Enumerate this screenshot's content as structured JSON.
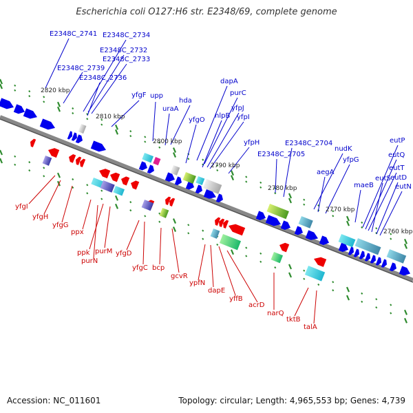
{
  "title": "Escherichia coli O127:H6 str. E2348/69, complete genome",
  "footer": {
    "accession": "Accession: NC_011601",
    "topology": "Topology: circular; Length: 4,965,553 bp; Genes: 4,739"
  },
  "colors": {
    "forward_gene": "#0000ee",
    "reverse_gene": "#ee0000",
    "backbone": "#888888",
    "tick": "#2e8b2e",
    "label_blue": "#0000cc",
    "label_red": "#cc0000"
  },
  "scale_labels": [
    "2820 kbp",
    "2810 kbp",
    "2800 kbp",
    "2790 kbp",
    "2780 kbp",
    "2770 kbp",
    "2760 kbp"
  ],
  "top_labels": [
    "E2348C_2741",
    "E2348C_2734",
    "E2348C_2732",
    "E2348C_2733",
    "E2348C_2739",
    "E2348C_2736",
    "yfgF",
    "upp",
    "uraA",
    "hda",
    "dapA",
    "purC",
    "nlpB",
    "yfgO",
    "yfpJ",
    "yfpI",
    "yfpH",
    "E2348C_2704",
    "E2348C_2705",
    "nudK",
    "aegA",
    "yfpG",
    "maeB",
    "eutP",
    "eutQ",
    "eutT",
    "eutS",
    "eutD",
    "eutN"
  ],
  "bottom_labels": [
    "yfgI",
    "yfgH",
    "yfgG",
    "ppx",
    "ppk",
    "purM",
    "purN",
    "yfgD",
    "yfgC",
    "bcp",
    "gcvR",
    "ypfN",
    "dapE",
    "yffB",
    "acrD",
    "narQ",
    "tktB",
    "talA"
  ]
}
